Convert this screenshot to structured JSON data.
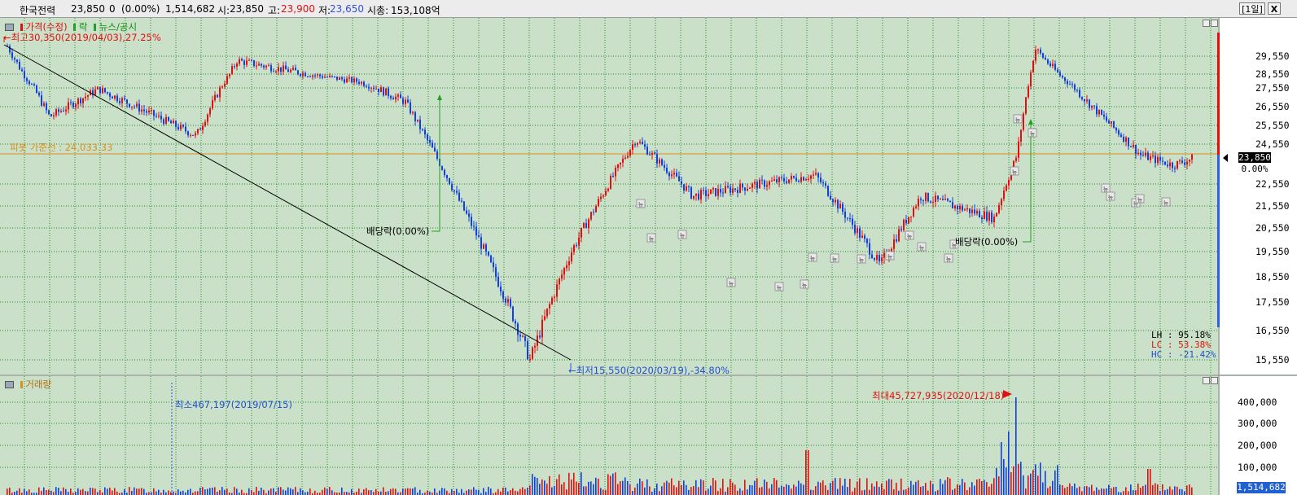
{
  "header": {
    "stock_name": "한국전력",
    "price": "23,850",
    "change": "0",
    "change_pct": "(0.00%)",
    "volume": "1,514,682",
    "open_label": "시:",
    "open_value": "23,850",
    "high_label": "고:",
    "high_value": "23,900",
    "low_label": "저:",
    "low_value": "23,650",
    "mktcap_label": "시총:",
    "mktcap_value": "153,108억",
    "period_button": "[1일]",
    "close_button": "X"
  },
  "price_panel": {
    "legend": {
      "price": "가격(수정)",
      "drop": "락",
      "news": "뉴스/공시"
    },
    "high_annotation": "최고30,350(2019/04/03),27.25%",
    "low_annotation": "최저15,550(2020/03/19),-34.80%",
    "pivot_label": "피봇 가준선 : 24,033.33",
    "dividend_label_1": "배당락(0.00%)",
    "dividend_label_2": "배당락(0.00%)",
    "news_marker": "뉴",
    "current_price_tag": "23,850",
    "current_change_tag": "0.00%",
    "stats": [
      {
        "label": "LH :",
        "value": "95.18%"
      },
      {
        "label": "LC :",
        "value": "53.38%"
      },
      {
        "label": "HC :",
        "value": "-21.42%"
      }
    ],
    "y_ticks": [
      "29,550",
      "28,550",
      "27,550",
      "26,550",
      "25,550",
      "24,550",
      "22,550",
      "21,550",
      "20,550",
      "19,550",
      "18,550",
      "17,550",
      "16,550",
      "15,550"
    ]
  },
  "volume_panel": {
    "legend": "거래량",
    "max_annotation": "최대45,727,935(2020/12/18)",
    "min_annotation": "최소467,197(2019/07/15)",
    "y_ticks": [
      "400,000",
      "300,000",
      "200,000",
      "100,000"
    ],
    "current_volume_tag": "1,514,682"
  },
  "colors": {
    "up": "#e01010",
    "down": "#1040e0",
    "background": "#cbe0c9",
    "pivot": "#d89020",
    "trend": "#000000"
  },
  "chart_data": {
    "type": "candlestick",
    "series": [
      {
        "name": "가격(수정)"
      },
      {
        "name": "거래량"
      }
    ],
    "price_range": [
      15550,
      30350
    ],
    "current_price": 23850,
    "pivot": 24033.33,
    "high": {
      "value": 30350,
      "date": "2019/04/03",
      "pct": 27.25
    },
    "low": {
      "value": 15550,
      "date": "2020/03/19",
      "pct": -34.8
    },
    "key_prices": [
      30350,
      26000,
      27500,
      25000,
      29300,
      28000,
      26800,
      22000,
      15550,
      19500,
      24800,
      22000,
      23000,
      19000,
      22000,
      21000,
      24000,
      30000,
      27000,
      24000,
      23500,
      23850
    ],
    "volume_max": {
      "value": 45727935,
      "date": "2020/12/18"
    },
    "volume_min": {
      "value": 467197,
      "date": "2019/07/15"
    },
    "grid": true
  }
}
